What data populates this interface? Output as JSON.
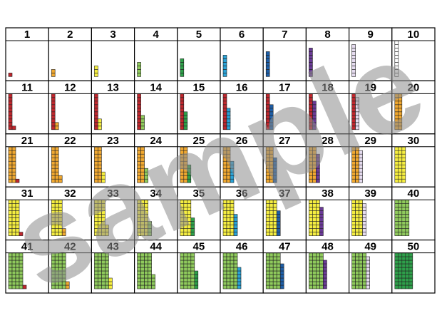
{
  "numbers": [
    1,
    2,
    3,
    4,
    5,
    6,
    7,
    8,
    9,
    10,
    11,
    12,
    13,
    14,
    15,
    16,
    17,
    18,
    19,
    20,
    21,
    22,
    23,
    24,
    25,
    26,
    27,
    28,
    29,
    30,
    31,
    32,
    33,
    34,
    35,
    36,
    37,
    38,
    39,
    40,
    41,
    42,
    43,
    44,
    45,
    46,
    47,
    48,
    49,
    50
  ],
  "unit_colors": [
    "#c0272d",
    "#f0a830",
    "#f5ee40",
    "#8fca5c",
    "#2ea04a",
    "#29a3d8",
    "#1e5fa8",
    "#6a3a96",
    "#e6dcf0",
    "#ffffff"
  ],
  "watermark": "sample"
}
